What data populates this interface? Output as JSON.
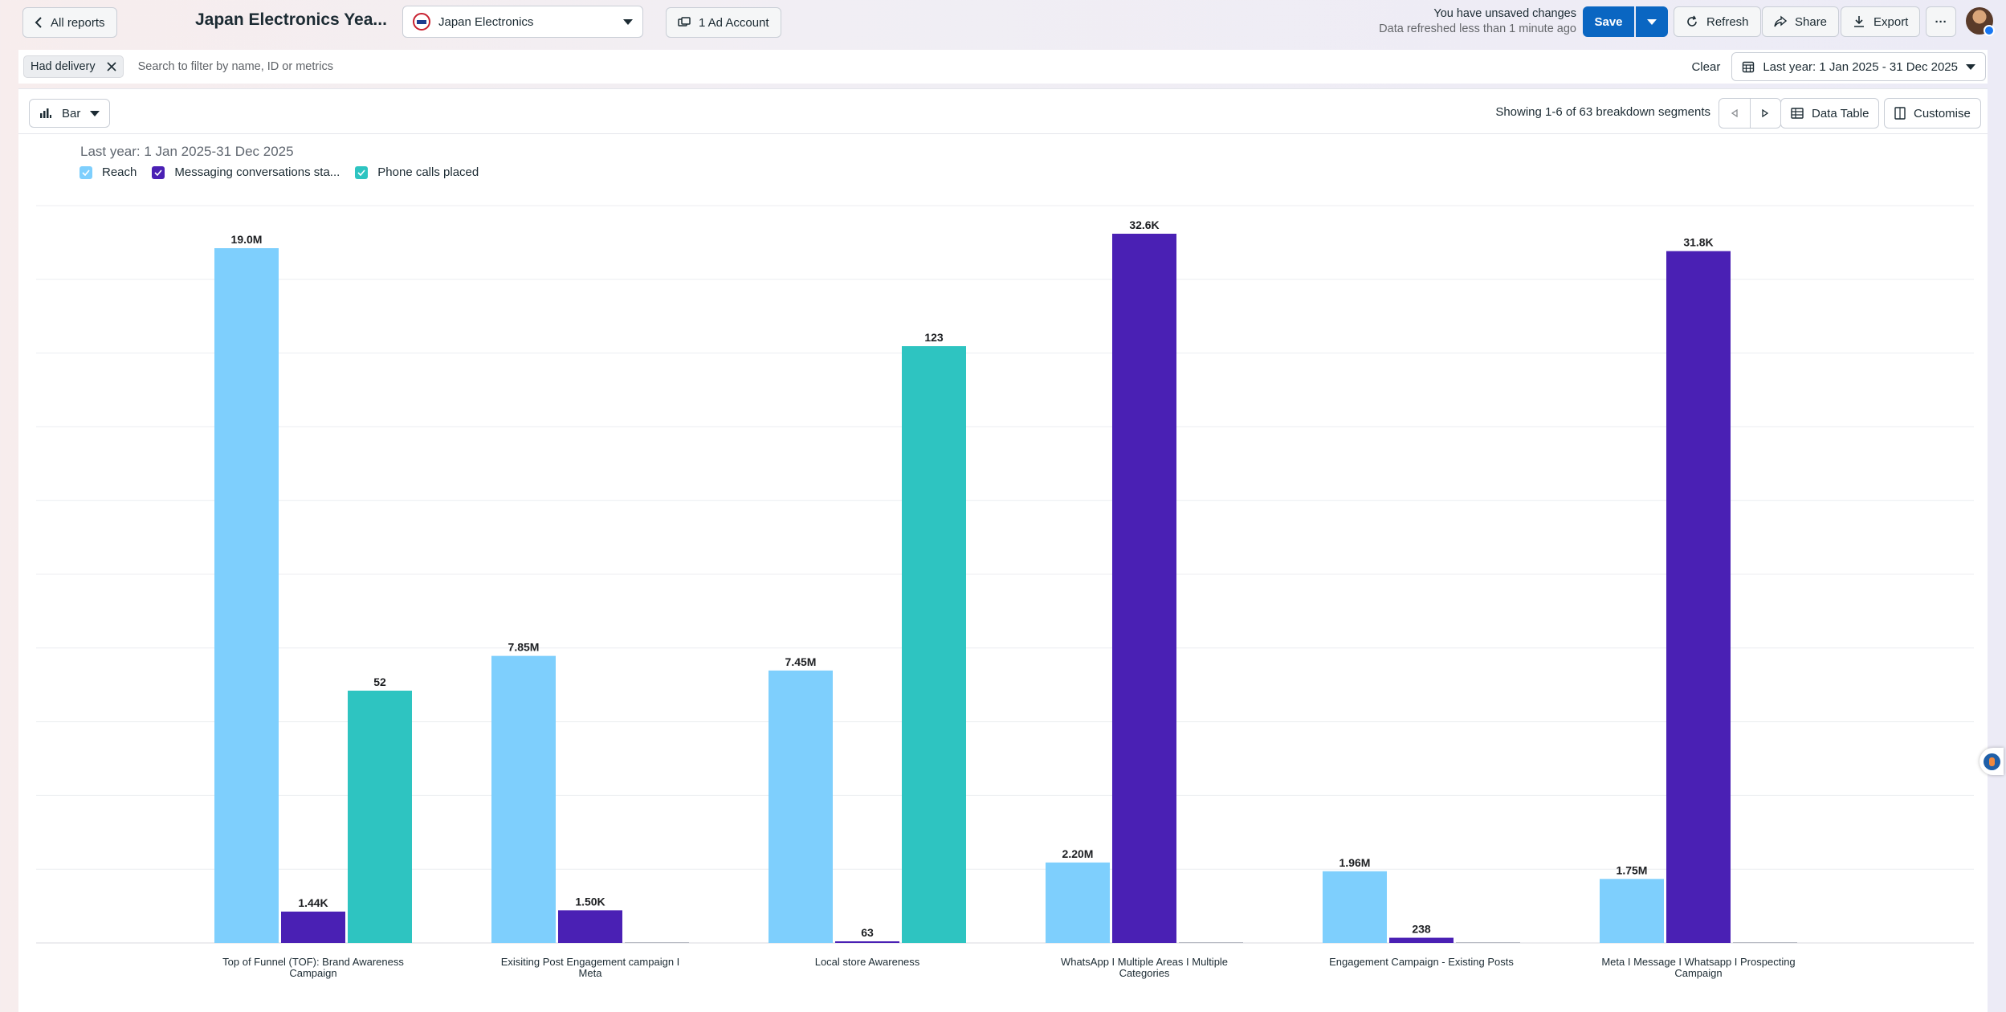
{
  "header": {
    "back_label": "All reports",
    "report_title": "Japan Electronics Yea...",
    "account_name": "Japan Electronics",
    "ad_account_label": "1 Ad Account",
    "unsaved_text": "You have unsaved changes",
    "refreshed_text": "Data refreshed less than 1 minute ago",
    "save_label": "Save",
    "refresh_label": "Refresh",
    "share_label": "Share",
    "export_label": "Export",
    "more_label": "···"
  },
  "filters": {
    "chip_label": "Had delivery",
    "search_placeholder": "Search to filter by name, ID or metrics",
    "clear_label": "Clear",
    "date_range": "Last year: 1 Jan 2025 - 31 Dec 2025"
  },
  "toolbar": {
    "chart_type_label": "Bar",
    "showing_text": "Showing 1-6 of 63 breakdown segments",
    "data_table_label": "Data Table",
    "customise_label": "Customise"
  },
  "colors": {
    "accent": "#0a66c2",
    "reach": "#7ecffd",
    "messaging": "#4a20b4",
    "phone": "#2ec4c1"
  },
  "chart_data": {
    "type": "bar",
    "period_label": "Last year: 1 Jan 2025-31 Dec 2025",
    "legend_position": "top-left",
    "grid": true,
    "categories": [
      [
        "Top of Funnel (TOF): Brand Awareness",
        "Campaign"
      ],
      [
        "Exisiting Post Engagement campaign I",
        "Meta"
      ],
      [
        "Local store Awareness"
      ],
      [
        "WhatsApp I Multiple Areas I Multiple",
        "Categories"
      ],
      [
        "Engagement Campaign - Existing Posts"
      ],
      [
        "Meta I Message I Whatsapp I Prospecting",
        "Campaign"
      ]
    ],
    "series": [
      {
        "name": "Reach",
        "color": "#7ecffd",
        "values": [
          19000000,
          7850000,
          7450000,
          2200000,
          1960000,
          1750000
        ],
        "labels": [
          "19.0M",
          "7.85M",
          "7.45M",
          "2.20M",
          "1.96M",
          "1.75M"
        ],
        "max": 19000000
      },
      {
        "name": "Messaging conversations sta...",
        "color": "#4a20b4",
        "values": [
          1440,
          1500,
          63,
          32600,
          238,
          31800
        ],
        "labels": [
          "1.44K",
          "1.50K",
          "63",
          "32.6K",
          "238",
          "31.8K"
        ],
        "max": 32600
      },
      {
        "name": "Phone calls placed",
        "color": "#2ec4c1",
        "values": [
          52,
          0,
          123,
          0,
          0,
          0
        ],
        "labels": [
          "52",
          "",
          "123",
          "",
          "",
          ""
        ],
        "max": 123
      }
    ]
  }
}
